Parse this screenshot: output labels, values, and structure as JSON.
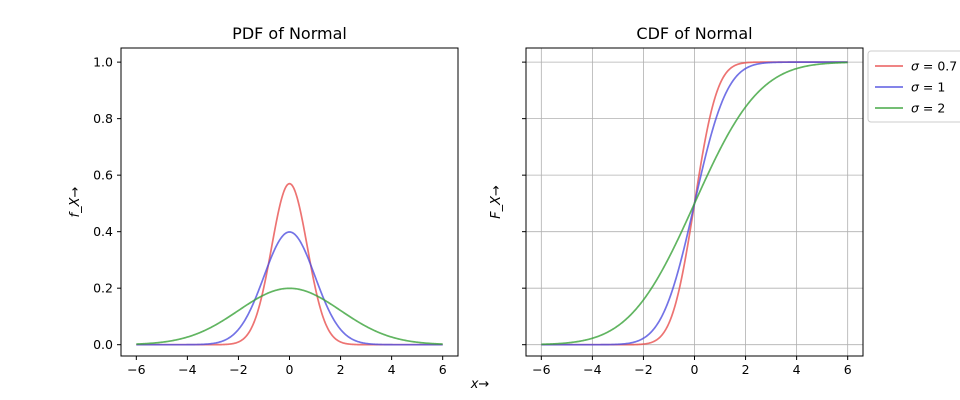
{
  "figure": {
    "shared_xlabel": "x→"
  },
  "chart_data": [
    {
      "type": "line",
      "title": "PDF of Normal",
      "ylabel": "f_X→",
      "xlim": [
        -6.6,
        6.6
      ],
      "ylim": [
        -0.04,
        1.05
      ],
      "xticks": [
        -6,
        -4,
        -2,
        0,
        2,
        4,
        6
      ],
      "xtick_labels": [
        "−6",
        "−4",
        "−2",
        "0",
        "2",
        "4",
        "6"
      ],
      "yticks": [
        0.0,
        0.2,
        0.4,
        0.6,
        0.8,
        1.0
      ],
      "ytick_labels": [
        "0.0",
        "0.2",
        "0.4",
        "0.6",
        "0.8",
        "1.0"
      ],
      "show_ytick_labels": true,
      "grid": false,
      "x_range": [
        -6,
        6
      ],
      "series": [
        {
          "name": "σ = 0.7",
          "sigma": 0.7,
          "color": "#e8504f"
        },
        {
          "name": "σ = 1",
          "sigma": 1,
          "color": "#5050e0"
        },
        {
          "name": "σ = 2",
          "sigma": 2,
          "color": "#3aa23a"
        }
      ],
      "function": "normal_pdf"
    },
    {
      "type": "line",
      "title": "CDF of Normal",
      "ylabel": "F_X→",
      "xlim": [
        -6.6,
        6.6
      ],
      "ylim": [
        -0.04,
        1.05
      ],
      "xticks": [
        -6,
        -4,
        -2,
        0,
        2,
        4,
        6
      ],
      "xtick_labels": [
        "−6",
        "−4",
        "−2",
        "0",
        "2",
        "4",
        "6"
      ],
      "yticks": [
        0.0,
        0.2,
        0.4,
        0.6,
        0.8,
        1.0
      ],
      "ytick_labels": [
        "",
        "",
        "",
        "",
        "",
        ""
      ],
      "show_ytick_labels": false,
      "grid": true,
      "x_range": [
        -6,
        6
      ],
      "series": [
        {
          "name": "σ = 0.7",
          "sigma": 0.7,
          "color": "#e8504f"
        },
        {
          "name": "σ = 1",
          "sigma": 1,
          "color": "#5050e0"
        },
        {
          "name": "σ = 2",
          "sigma": 2,
          "color": "#3aa23a"
        }
      ],
      "function": "normal_cdf",
      "legend": {
        "placement": "outside-upper-right",
        "entries": [
          {
            "label_prefix": "σ",
            "label_suffix": " = 0.7",
            "color": "#e8504f"
          },
          {
            "label_prefix": "σ",
            "label_suffix": " = 1",
            "color": "#5050e0"
          },
          {
            "label_prefix": "σ",
            "label_suffix": " = 2",
            "color": "#3aa23a"
          }
        ]
      }
    }
  ]
}
